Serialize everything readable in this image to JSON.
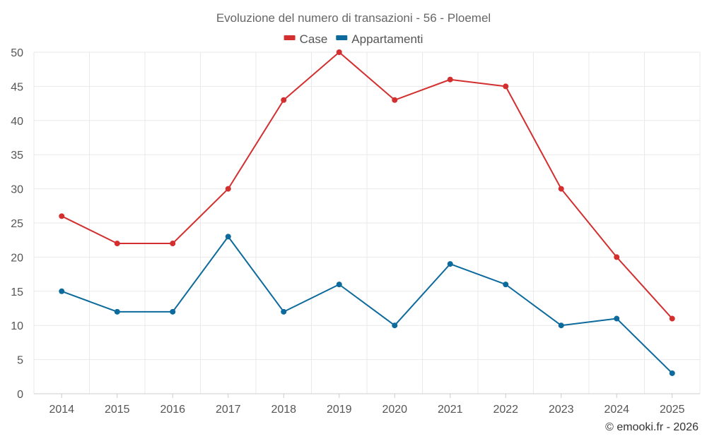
{
  "chart_data": {
    "type": "line",
    "title": "Evoluzione del numero di transazioni - 56 - Ploemel",
    "xlabel": "",
    "ylabel": "",
    "categories": [
      "2014",
      "2015",
      "2016",
      "2017",
      "2018",
      "2019",
      "2020",
      "2021",
      "2022",
      "2023",
      "2024",
      "2025"
    ],
    "ylim": [
      0,
      50
    ],
    "yticks": [
      "0",
      "5",
      "10",
      "15",
      "20",
      "25",
      "30",
      "35",
      "40",
      "45",
      "50"
    ],
    "grid": true,
    "legend_position": "top-center",
    "series": [
      {
        "name": "Case",
        "color": "#d32f2f",
        "values": [
          26,
          22,
          22,
          30,
          43,
          50,
          43,
          46,
          45,
          30,
          20,
          11
        ]
      },
      {
        "name": "Appartamenti",
        "color": "#0d6a9c",
        "values": [
          15,
          12,
          12,
          23,
          12,
          16,
          10,
          19,
          16,
          10,
          11,
          3
        ]
      }
    ]
  },
  "footer": {
    "credit": "© emooki.fr - 2026"
  }
}
